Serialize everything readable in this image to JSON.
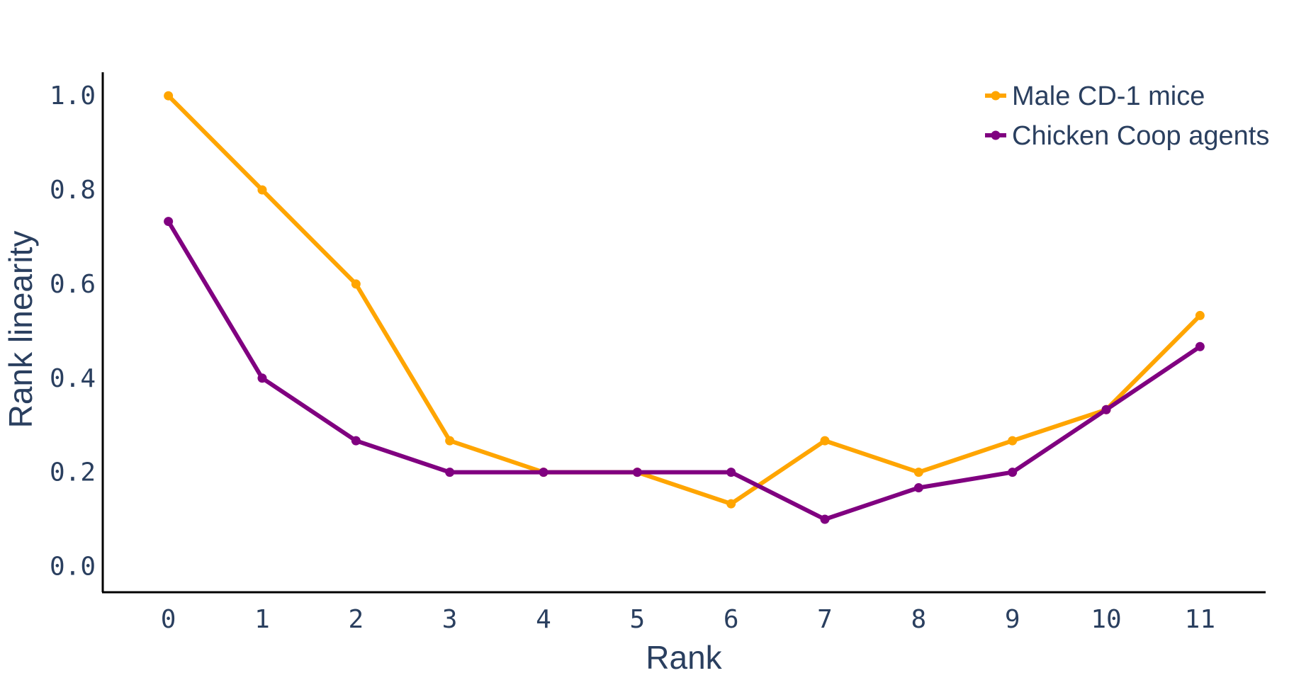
{
  "chart_data": {
    "type": "line",
    "xlabel": "Rank",
    "ylabel": "Rank linearity",
    "x": [
      0,
      1,
      2,
      3,
      4,
      5,
      6,
      7,
      8,
      9,
      10,
      11
    ],
    "xlim": [
      -0.7,
      11.7
    ],
    "ylim": [
      -0.055,
      1.05
    ],
    "x_ticks": [
      "0",
      "1",
      "2",
      "3",
      "4",
      "5",
      "6",
      "7",
      "8",
      "9",
      "10",
      "11"
    ],
    "y_ticks": [
      "0.0",
      "0.2",
      "0.4",
      "0.6",
      "0.8",
      "1.0"
    ],
    "grid": false,
    "legend_position": "top-right",
    "series": [
      {
        "name": "Male CD-1 mice",
        "color": "#FFA500",
        "values": [
          1.0,
          0.8,
          0.6,
          0.267,
          0.2,
          0.2,
          0.133,
          0.267,
          0.2,
          0.267,
          0.333,
          0.533
        ]
      },
      {
        "name": "Chicken Coop agents",
        "color": "#800080",
        "values": [
          0.733,
          0.4,
          0.267,
          0.2,
          0.2,
          0.2,
          0.2,
          0.1,
          0.167,
          0.2,
          0.333,
          0.467
        ]
      }
    ]
  }
}
